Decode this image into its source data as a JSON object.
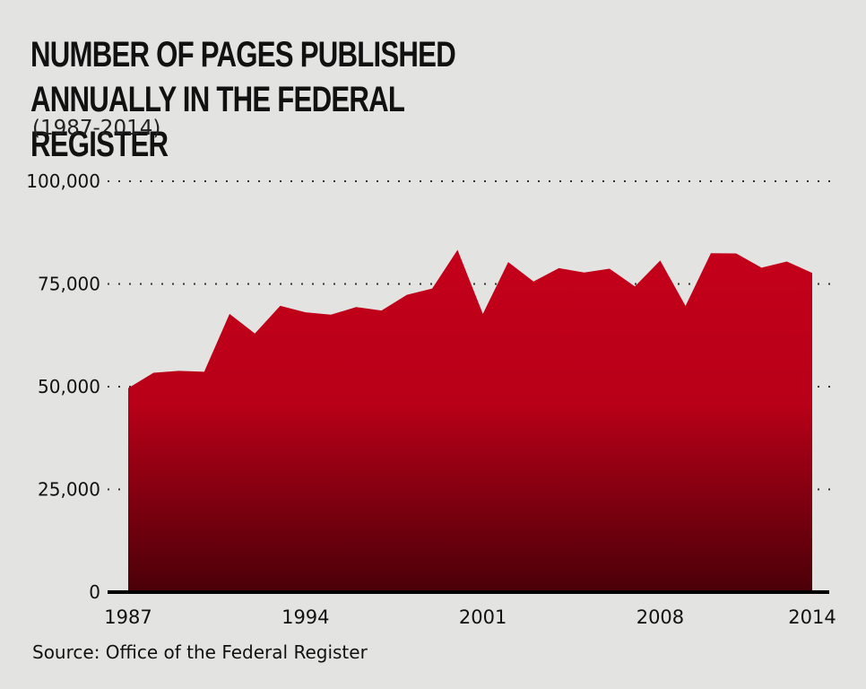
{
  "title": "Number of Pages Published Annually in the Federal Register",
  "subtitle": "(1987-2014)",
  "source": "Source: Office of the Federal Register",
  "colors": {
    "fill_top": "#c4001a",
    "fill_bottom": "#4a0008",
    "background": "#e3e4e2"
  },
  "chart_data": {
    "type": "area",
    "title": "Number of Pages Published Annually in the Federal Register",
    "subtitle": "(1987-2014)",
    "xlabel": "",
    "ylabel": "",
    "x": [
      1987,
      1988,
      1989,
      1990,
      1991,
      1992,
      1993,
      1994,
      1995,
      1996,
      1997,
      1998,
      1999,
      2000,
      2001,
      2002,
      2003,
      2004,
      2005,
      2006,
      2007,
      2008,
      2009,
      2010,
      2011,
      2012,
      2013,
      2014
    ],
    "series": [
      {
        "values": [
          49654,
          53376,
          53842,
          53620,
          67716,
          62928,
          69688,
          68108,
          67518,
          69368,
          68530,
          72356,
          73880,
          83294,
          67702,
          80332,
          75606,
          78852,
          77777,
          78724,
          74408,
          80700,
          69643,
          82480,
          82415,
          78961,
          80462,
          77687
        ]
      }
    ],
    "xticks": [
      "1987",
      "1994",
      "2001",
      "2008",
      "2014"
    ],
    "yticks": [
      "0",
      "25,000",
      "50,000",
      "75,000",
      "100,000"
    ],
    "ytick_values": [
      0,
      25000,
      50000,
      75000,
      100000
    ],
    "ylim": [
      0,
      100000
    ],
    "xlim": [
      1987,
      2014
    ],
    "grid": "horizontal dotted"
  }
}
